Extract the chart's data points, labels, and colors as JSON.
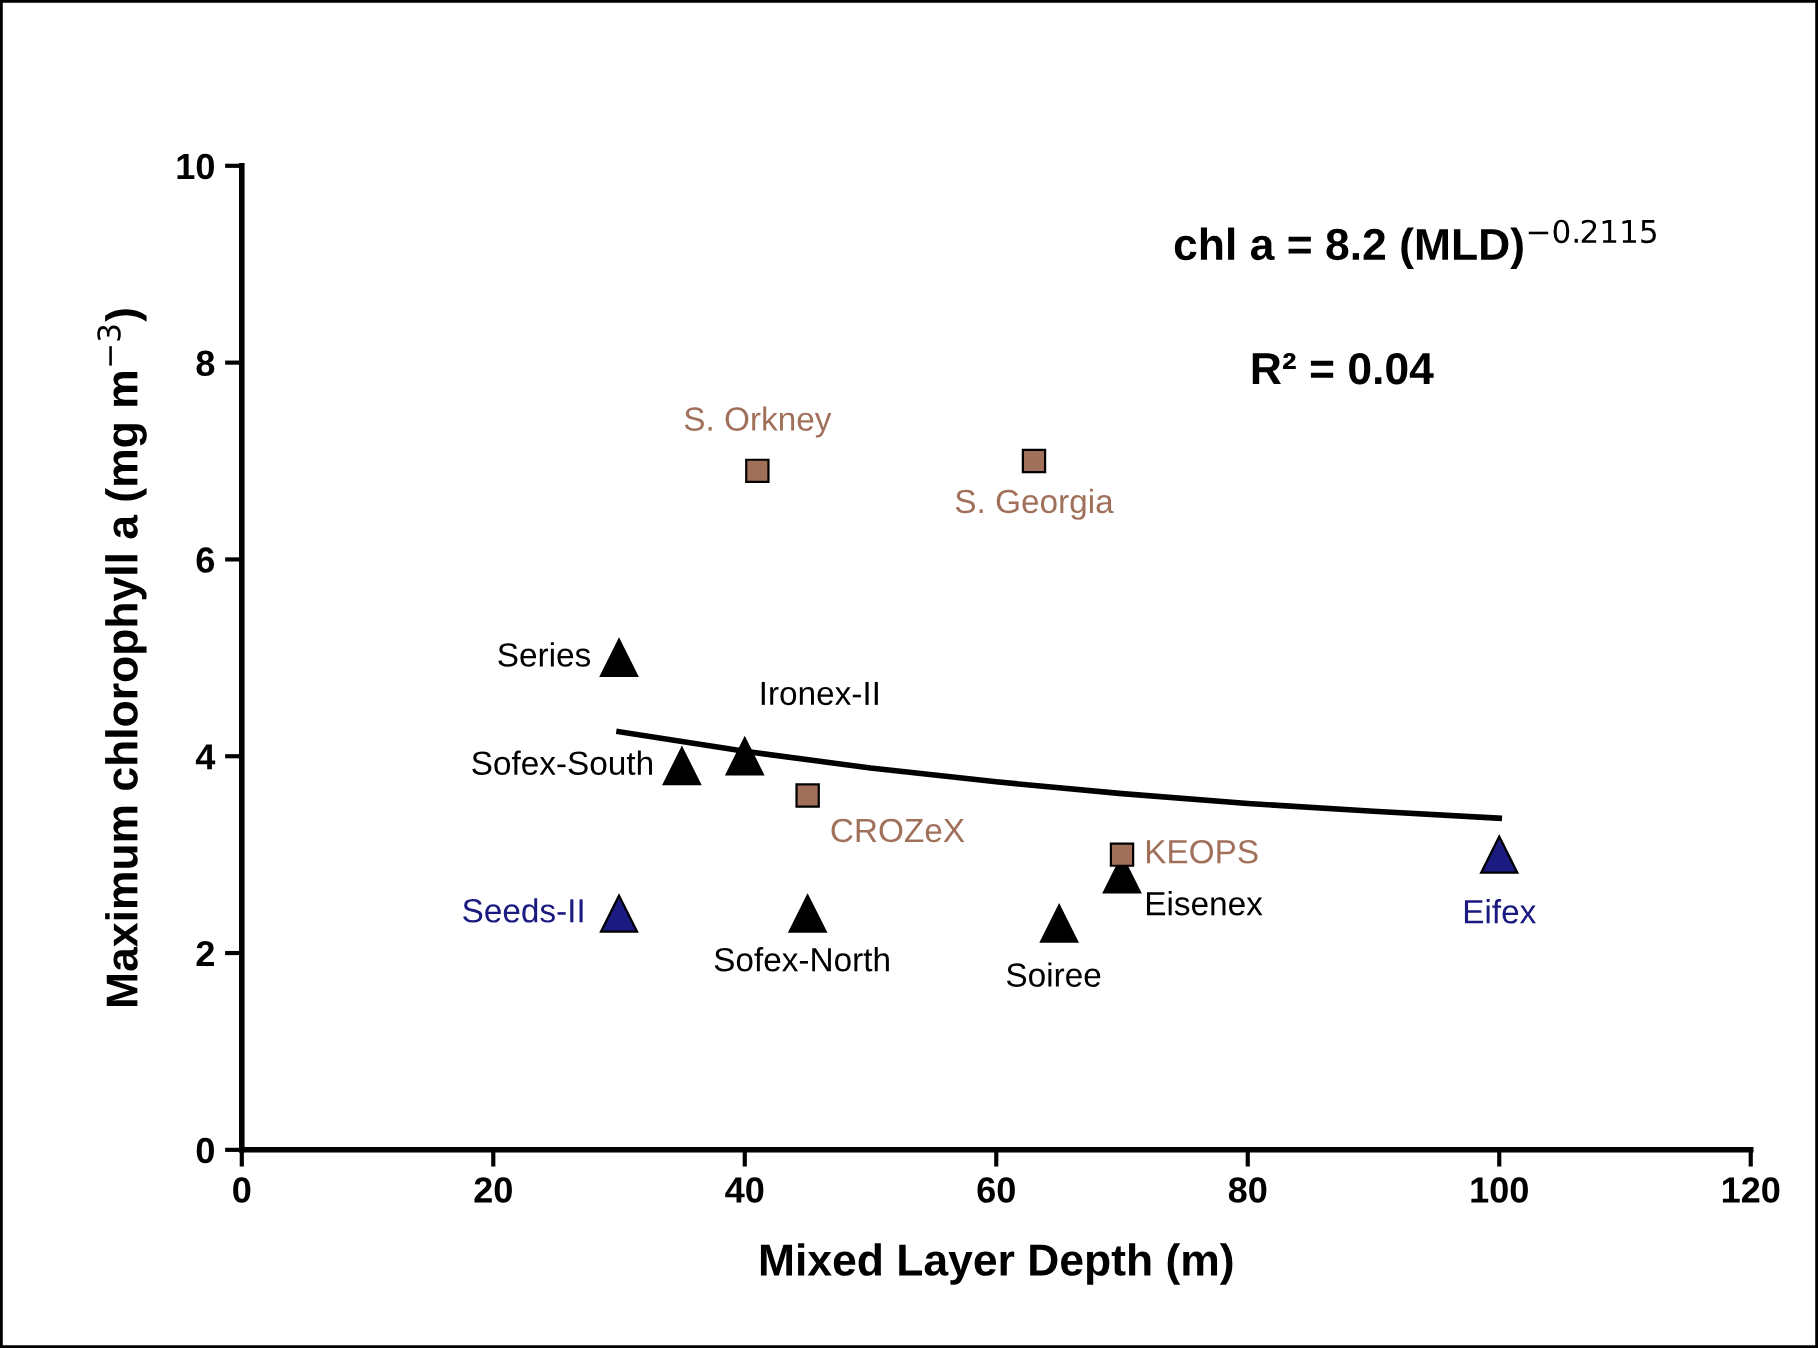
{
  "chart_data": {
    "type": "scatter",
    "xlabel": "Mixed Layer Depth (m)",
    "ylabel": "Maximum chlorophyll a (mg m$^{−3}$)",
    "xlim": [
      0,
      120
    ],
    "xticks": [
      0,
      20,
      40,
      60,
      80,
      100,
      120
    ],
    "ylim": [
      0,
      10
    ],
    "yticks": [
      0,
      2,
      4,
      6,
      8,
      10
    ],
    "grid": false,
    "legend": false,
    "annotations": [
      "chl a = 8.2 (MLD)$^{−0.2115}$",
      "R² = 0.04"
    ],
    "series": [
      {
        "name": "Series",
        "color": "#000000",
        "marker": "triangle",
        "x": [
          30
        ],
        "values": [
          5.0
        ]
      },
      {
        "name": "Sofex-South",
        "color": "#000000",
        "marker": "triangle",
        "x": [
          35
        ],
        "values": [
          3.9
        ]
      },
      {
        "name": "Ironex-II",
        "color": "#000000",
        "marker": "triangle",
        "x": [
          40
        ],
        "values": [
          4.0
        ]
      },
      {
        "name": "Seeds-II",
        "color": "#1a1a80",
        "marker": "triangle",
        "x": [
          30
        ],
        "values": [
          2.4
        ]
      },
      {
        "name": "Sofex-North",
        "color": "#000000",
        "marker": "triangle",
        "x": [
          45
        ],
        "values": [
          2.4
        ]
      },
      {
        "name": "Soiree",
        "color": "#000000",
        "marker": "triangle",
        "x": [
          65
        ],
        "values": [
          2.3
        ]
      },
      {
        "name": "Eisenex",
        "color": "#000000",
        "marker": "triangle",
        "x": [
          70
        ],
        "values": [
          2.8
        ]
      },
      {
        "name": "Eifex",
        "color": "#1a1a80",
        "marker": "triangle",
        "x": [
          100
        ],
        "values": [
          3.0
        ]
      },
      {
        "name": "S. Orkney",
        "color": "#a0705a",
        "marker": "square",
        "x": [
          41
        ],
        "values": [
          6.9
        ]
      },
      {
        "name": "S. Georgia",
        "color": "#a0705a",
        "marker": "square",
        "x": [
          63
        ],
        "values": [
          7.0
        ]
      },
      {
        "name": "CROZeX",
        "color": "#a0705a",
        "marker": "square",
        "x": [
          45
        ],
        "values": [
          3.6
        ]
      },
      {
        "name": "KEOPS",
        "color": "#a0705a",
        "marker": "square",
        "x": [
          70
        ],
        "values": [
          3.0
        ]
      },
      {
        "type": "line",
        "color": "#000000",
        "marker": "none",
        "x": [
          30,
          40,
          50,
          60,
          70,
          80,
          90,
          100
        ],
        "values": [
          4.25,
          4.05,
          3.88,
          3.74,
          3.62,
          3.52,
          3.44,
          3.37
        ]
      }
    ]
  }
}
